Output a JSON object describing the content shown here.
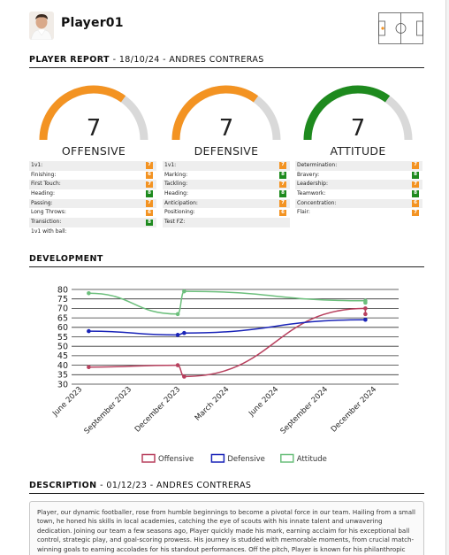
{
  "header": {
    "player_name": "Player01",
    "avatar_icon": "player-avatar-photo",
    "pitch_icon": "football-pitch-icon"
  },
  "report": {
    "title": "PLAYER REPORT",
    "subtitle": "- 18/10/24 - ANDRES CONTRERAS"
  },
  "colors": {
    "orange": "#f39322",
    "green": "#1e8a1e",
    "gauge_track": "#d9d9d9",
    "offensive_line": "#b8405e",
    "defensive_line": "#1a24b8",
    "attitude_line": "#6cbf7c"
  },
  "gauges": [
    {
      "label": "OFFENSIVE",
      "value": "7",
      "fill_fraction": 0.7,
      "color": "#f39322"
    },
    {
      "label": "DEFENSIVE",
      "value": "7",
      "fill_fraction": 0.7,
      "color": "#f39322"
    },
    {
      "label": "ATTITUDE",
      "value": "7",
      "fill_fraction": 0.7,
      "color": "#1e8a1e"
    }
  ],
  "stats": {
    "offensive": [
      {
        "name": "1v1:",
        "value": "7",
        "color": "#f39322"
      },
      {
        "name": "Finishing:",
        "value": "6",
        "color": "#f39322"
      },
      {
        "name": "First Touch:",
        "value": "7",
        "color": "#f39322"
      },
      {
        "name": "Heading:",
        "value": "8",
        "color": "#1e8a1e"
      },
      {
        "name": "Passing:",
        "value": "7",
        "color": "#f39322"
      },
      {
        "name": "Long Throws:",
        "value": "6",
        "color": "#f39322"
      },
      {
        "name": "Transiction:",
        "value": "8",
        "color": "#1e8a1e"
      },
      {
        "name": "1v1 with ball:",
        "value": "",
        "color": ""
      }
    ],
    "defensive": [
      {
        "name": "1v1:",
        "value": "7",
        "color": "#f39322"
      },
      {
        "name": "Marking:",
        "value": "8",
        "color": "#1e8a1e"
      },
      {
        "name": "Tackling:",
        "value": "7",
        "color": "#f39322"
      },
      {
        "name": "Heading:",
        "value": "8",
        "color": "#1e8a1e"
      },
      {
        "name": "Anticipation:",
        "value": "7",
        "color": "#f39322"
      },
      {
        "name": "Positioning:",
        "value": "6",
        "color": "#f39322"
      },
      {
        "name": "Test FZ:",
        "value": "",
        "color": ""
      }
    ],
    "attitude": [
      {
        "name": "Determination:",
        "value": "7",
        "color": "#f39322"
      },
      {
        "name": "Bravery:",
        "value": "8",
        "color": "#1e8a1e"
      },
      {
        "name": "Leadership:",
        "value": "7",
        "color": "#f39322"
      },
      {
        "name": "Teamwork:",
        "value": "8",
        "color": "#1e8a1e"
      },
      {
        "name": "Concentration:",
        "value": "6",
        "color": "#f39322"
      },
      {
        "name": "Flair:",
        "value": "7",
        "color": "#f39322"
      }
    ]
  },
  "development": {
    "title": "DEVELOPMENT"
  },
  "chart_data": {
    "type": "line",
    "y_ticks": [
      "80",
      "75",
      "70",
      "65",
      "60",
      "55",
      "50",
      "45",
      "40",
      "35",
      "30"
    ],
    "ylim": [
      30,
      80
    ],
    "x_ticks": [
      "June 2023",
      "September 2023",
      "December 2023",
      "March 2024",
      "June 2024",
      "September 2024",
      "December 2024"
    ],
    "x_tick_days": [
      0,
      92,
      183,
      274,
      366,
      458,
      549
    ],
    "xlim": [
      -20,
      590
    ],
    "series": [
      {
        "name": "Offensive",
        "color": "#b8405e",
        "points": [
          {
            "x": "2023-06-13",
            "y": 39
          },
          {
            "x": "2023-11-26",
            "y": 40
          },
          {
            "x": "2023-12-08",
            "y": 34
          },
          {
            "x": "2024-11-10",
            "y": 70
          },
          {
            "x": "2024-11-10",
            "y": 67
          }
        ]
      },
      {
        "name": "Defensive",
        "color": "#1a24b8",
        "points": [
          {
            "x": "2023-06-13",
            "y": 58
          },
          {
            "x": "2023-11-26",
            "y": 56
          },
          {
            "x": "2023-12-08",
            "y": 57
          },
          {
            "x": "2024-11-10",
            "y": 64
          }
        ]
      },
      {
        "name": "Attitude",
        "color": "#6cbf7c",
        "points": [
          {
            "x": "2023-06-13",
            "y": 78
          },
          {
            "x": "2023-11-26",
            "y": 67
          },
          {
            "x": "2023-12-08",
            "y": 79
          },
          {
            "x": "2024-11-10",
            "y": 74
          },
          {
            "x": "2024-11-10",
            "y": 73
          }
        ]
      }
    ],
    "legend_position": "bottom",
    "grid": "horizontal"
  },
  "description": {
    "title": "DESCRIPTION",
    "subtitle": "- 01/12/23 - ANDRES CONTRERAS",
    "text": "Player, our dynamic footballer, rose from humble beginnings to become a pivotal force in our team. Hailing from a small town, he honed his skills in local academies, catching the eye of scouts with his innate talent and unwavering dedication. Joining our team a few seasons ago, Player quickly made his mark, earning acclaim for his exceptional ball control, strategic play, and goal-scoring prowess. His journey is studded with memorable moments, from crucial match-winning goals to earning accolades for his standout performances. Off the pitch, Player is known for his philanthropic endeavors, reflecting a commitment to giving"
  }
}
